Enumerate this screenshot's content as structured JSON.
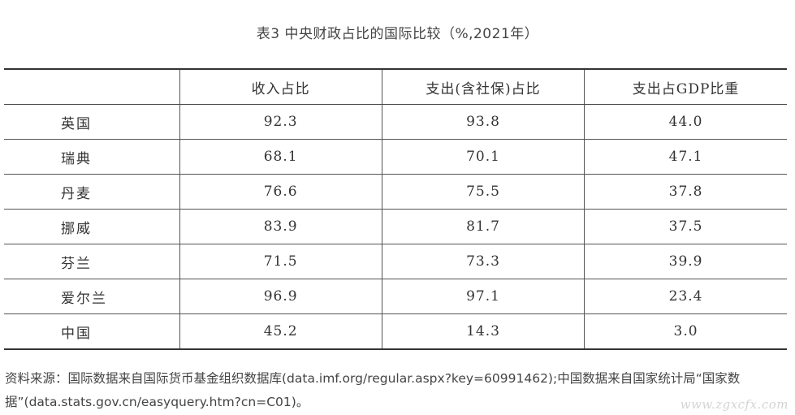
{
  "title": "表3 中央财政占比的国际比较（%,2021年）",
  "table": {
    "headers": [
      "",
      "收入占比",
      "支出(含社保)占比",
      "支出占GDP比重"
    ],
    "rows": [
      {
        "country": "英国",
        "revenue_share": "92.3",
        "expenditure_share": "93.8",
        "expenditure_gdp": "44.0"
      },
      {
        "country": "瑞典",
        "revenue_share": "68.1",
        "expenditure_share": "70.1",
        "expenditure_gdp": "47.1"
      },
      {
        "country": "丹麦",
        "revenue_share": "76.6",
        "expenditure_share": "75.5",
        "expenditure_gdp": "37.8"
      },
      {
        "country": "挪威",
        "revenue_share": "83.9",
        "expenditure_share": "81.7",
        "expenditure_gdp": "37.5"
      },
      {
        "country": "芬兰",
        "revenue_share": "71.5",
        "expenditure_share": "73.3",
        "expenditure_gdp": "39.9"
      },
      {
        "country": "爱尔兰",
        "revenue_share": "96.9",
        "expenditure_share": "97.1",
        "expenditure_gdp": "23.4"
      },
      {
        "country": "中国",
        "revenue_share": "45.2",
        "expenditure_share": "14.3",
        "expenditure_gdp": "3.0"
      }
    ]
  },
  "source": "资料来源：国际数据来自国际货币基金组织数据库(data.imf.org/regular.aspx?key=60991462);中国数据来自国家统计局“国家数据”(data.stats.gov.cn/easyquery.htm?cn=C01)。",
  "watermark": "www.zgxcfx.com"
}
